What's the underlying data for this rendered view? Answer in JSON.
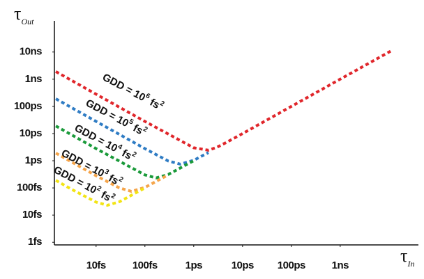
{
  "chart_data": {
    "type": "line",
    "x_scale": "log",
    "y_scale": "log",
    "y_label": {
      "symbol": "τ",
      "subscript": "Out"
    },
    "x_label": {
      "symbol": "τ",
      "subscript": "In"
    },
    "xlim": [
      1.4,
      40000000
    ],
    "ylim": [
      0.8,
      140000000
    ],
    "xticks": [
      {
        "value": 10,
        "label": "10fs"
      },
      {
        "value": 100,
        "label": "100fs"
      },
      {
        "value": 1000,
        "label": "1ps"
      },
      {
        "value": 10000,
        "label": "10ps"
      },
      {
        "value": 100000,
        "label": "100ps"
      },
      {
        "value": 1000000,
        "label": "1ns"
      }
    ],
    "yticks": [
      {
        "value": 1,
        "label": "1fs"
      },
      {
        "value": 10,
        "label": "10fs"
      },
      {
        "value": 100,
        "label": "100fs"
      },
      {
        "value": 1000,
        "label": "1ps"
      },
      {
        "value": 10000,
        "label": "10ps"
      },
      {
        "value": 100000,
        "label": "100ps"
      },
      {
        "value": 1000000,
        "label": "1ns"
      },
      {
        "value": 10000000,
        "label": "10ns"
      }
    ],
    "series": [
      {
        "label": {
          "base": "GDD = 10",
          "exponent": "6",
          "unit": " fs",
          "unit_exponent": "2"
        },
        "color": "#e0262b",
        "x": [
          1.5,
          10,
          100,
          1000,
          2000,
          3000,
          5000,
          10000,
          100000,
          1000000,
          12000000
        ],
        "values": [
          1900000,
          280000,
          28000,
          3000,
          2440,
          3140,
          5030,
          10000,
          100000,
          1000000,
          12000000
        ]
      },
      {
        "label": {
          "base": "GDD = 10",
          "exponent": "5",
          "unit": " fs",
          "unit_exponent": "2"
        },
        "color": "#2f7cc4",
        "x": [
          1.5,
          10,
          100,
          300,
          530,
          1000,
          2000
        ],
        "values": [
          190000,
          28000,
          2800,
          980,
          750,
          1040,
          2000
        ]
      },
      {
        "label": {
          "base": "GDD = 10",
          "exponent": "4",
          "unit": " fs",
          "unit_exponent": "2"
        },
        "color": "#1a9a3a",
        "x": [
          1.5,
          10,
          100,
          170,
          300,
          1000
        ],
        "values": [
          19000,
          2800,
          300,
          233,
          312,
          1000
        ]
      },
      {
        "label": {
          "base": "GDD = 10",
          "exponent": "3",
          "unit": " fs",
          "unit_exponent": "2"
        },
        "color": "#f5a54a",
        "x": [
          1.5,
          10,
          30,
          53,
          100,
          300
        ],
        "values": [
          1900,
          280,
          100,
          75,
          104,
          300
        ]
      },
      {
        "label": {
          "base": "GDD = 10",
          "exponent": "2",
          "unit": " fs",
          "unit_exponent": "2"
        },
        "color": "#f2e414",
        "x": [
          1.5,
          3,
          10,
          17,
          30,
          100
        ],
        "values": [
          190,
          93,
          30,
          23,
          31,
          100
        ]
      }
    ]
  }
}
